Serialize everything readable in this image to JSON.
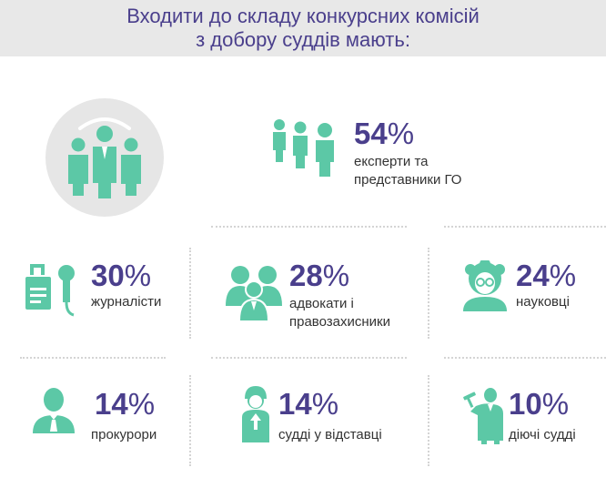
{
  "header": {
    "title_line1": "Входити до складу конкурсних комісій",
    "title_line2": "з добору суддів мають:"
  },
  "colors": {
    "accent": "#5cc8a6",
    "text_purple": "#4a3f8c",
    "header_bg": "#e8e8e8"
  },
  "stats": [
    {
      "value": "54",
      "sign": "%",
      "label_line1": "експерти та",
      "label_line2": "представники ГО",
      "icon": "group-walking-icon"
    },
    {
      "value": "30",
      "sign": "%",
      "label_line1": "журналісти",
      "label_line2": "",
      "icon": "journalist-icon"
    },
    {
      "value": "28",
      "sign": "%",
      "label_line1": "адвокати і",
      "label_line2": "правозахисники",
      "icon": "lawyers-icon"
    },
    {
      "value": "24",
      "sign": "%",
      "label_line1": "науковці",
      "label_line2": "",
      "icon": "scientist-icon"
    },
    {
      "value": "14",
      "sign": "%",
      "label_line1": "прокурори",
      "label_line2": "",
      "icon": "prosecutor-icon"
    },
    {
      "value": "14",
      "sign": "%",
      "label_line1": "судді у відставці",
      "label_line2": "",
      "icon": "retired-judge-icon"
    },
    {
      "value": "10",
      "sign": "%",
      "label_line1": "діючі судді",
      "label_line2": "",
      "icon": "judge-icon"
    }
  ],
  "hero_icon": "committee-icon"
}
